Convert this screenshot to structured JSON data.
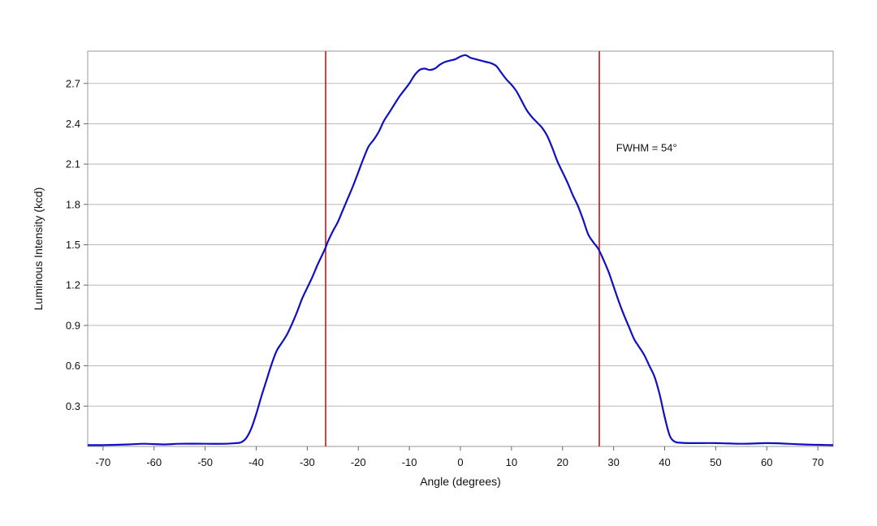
{
  "chart_data": {
    "type": "line",
    "title": "",
    "xlabel": "Angle (degrees)",
    "ylabel": "Luminous Intensity (kcd)",
    "xlim": [
      -73,
      73
    ],
    "ylim": [
      0,
      2.94
    ],
    "x_ticks": [
      -70,
      -60,
      -50,
      -40,
      -30,
      -20,
      -10,
      0,
      10,
      20,
      30,
      40,
      50,
      60,
      70
    ],
    "y_ticks": [
      0.3,
      0.6,
      0.9,
      1.2,
      1.5,
      1.8,
      2.1,
      2.4,
      2.7
    ],
    "grid": "horizontal",
    "series": [
      {
        "color": "#1010c0",
        "points": [
          [
            -73,
            0.01
          ],
          [
            -70,
            0.01
          ],
          [
            -65,
            0.015
          ],
          [
            -62,
            0.02
          ],
          [
            -58,
            0.015
          ],
          [
            -55,
            0.02
          ],
          [
            -50,
            0.02
          ],
          [
            -46,
            0.02
          ],
          [
            -44,
            0.025
          ],
          [
            -43,
            0.03
          ],
          [
            -42,
            0.06
          ],
          [
            -41,
            0.13
          ],
          [
            -40,
            0.24
          ],
          [
            -39,
            0.37
          ],
          [
            -38,
            0.49
          ],
          [
            -37,
            0.61
          ],
          [
            -36,
            0.71
          ],
          [
            -35,
            0.77
          ],
          [
            -34,
            0.83
          ],
          [
            -33,
            0.91
          ],
          [
            -32,
            1.0
          ],
          [
            -31,
            1.1
          ],
          [
            -30,
            1.18
          ],
          [
            -29,
            1.26
          ],
          [
            -28,
            1.35
          ],
          [
            -27,
            1.43
          ],
          [
            -26.4,
            1.48
          ],
          [
            -26,
            1.52
          ],
          [
            -25,
            1.6
          ],
          [
            -24,
            1.67
          ],
          [
            -23,
            1.76
          ],
          [
            -22,
            1.85
          ],
          [
            -21,
            1.94
          ],
          [
            -20,
            2.04
          ],
          [
            -19,
            2.14
          ],
          [
            -18,
            2.23
          ],
          [
            -17,
            2.28
          ],
          [
            -16,
            2.34
          ],
          [
            -15,
            2.42
          ],
          [
            -14,
            2.48
          ],
          [
            -13,
            2.54
          ],
          [
            -12,
            2.6
          ],
          [
            -11,
            2.65
          ],
          [
            -10,
            2.7
          ],
          [
            -9,
            2.76
          ],
          [
            -8,
            2.8
          ],
          [
            -7,
            2.81
          ],
          [
            -6,
            2.8
          ],
          [
            -5,
            2.81
          ],
          [
            -4,
            2.84
          ],
          [
            -3,
            2.86
          ],
          [
            -2,
            2.87
          ],
          [
            -1,
            2.88
          ],
          [
            0,
            2.9
          ],
          [
            1,
            2.91
          ],
          [
            2,
            2.89
          ],
          [
            3,
            2.88
          ],
          [
            4,
            2.87
          ],
          [
            5,
            2.86
          ],
          [
            6,
            2.85
          ],
          [
            7,
            2.83
          ],
          [
            8,
            2.78
          ],
          [
            9,
            2.73
          ],
          [
            10,
            2.69
          ],
          [
            11,
            2.64
          ],
          [
            12,
            2.57
          ],
          [
            13,
            2.5
          ],
          [
            14,
            2.45
          ],
          [
            15,
            2.41
          ],
          [
            16,
            2.37
          ],
          [
            17,
            2.31
          ],
          [
            18,
            2.22
          ],
          [
            19,
            2.12
          ],
          [
            20,
            2.04
          ],
          [
            21,
            1.96
          ],
          [
            22,
            1.87
          ],
          [
            23,
            1.79
          ],
          [
            24,
            1.69
          ],
          [
            25,
            1.58
          ],
          [
            26,
            1.52
          ],
          [
            27,
            1.47
          ],
          [
            28,
            1.39
          ],
          [
            29,
            1.3
          ],
          [
            30,
            1.19
          ],
          [
            31,
            1.08
          ],
          [
            32,
            0.98
          ],
          [
            33,
            0.89
          ],
          [
            34,
            0.8
          ],
          [
            35,
            0.74
          ],
          [
            36,
            0.68
          ],
          [
            37,
            0.6
          ],
          [
            38,
            0.52
          ],
          [
            39,
            0.39
          ],
          [
            40,
            0.22
          ],
          [
            41,
            0.08
          ],
          [
            42,
            0.035
          ],
          [
            43,
            0.028
          ],
          [
            45,
            0.025
          ],
          [
            50,
            0.025
          ],
          [
            55,
            0.02
          ],
          [
            60,
            0.025
          ],
          [
            63,
            0.022
          ],
          [
            67,
            0.015
          ],
          [
            70,
            0.012
          ],
          [
            73,
            0.01
          ]
        ]
      }
    ],
    "vlines": [
      {
        "x": -26.4,
        "color": "#d01010"
      },
      {
        "x": 27.2,
        "color": "#d01010"
      }
    ],
    "annotations": [
      {
        "text": "FWHM = 54°",
        "x": 30.5,
        "y": 2.22
      }
    ]
  }
}
